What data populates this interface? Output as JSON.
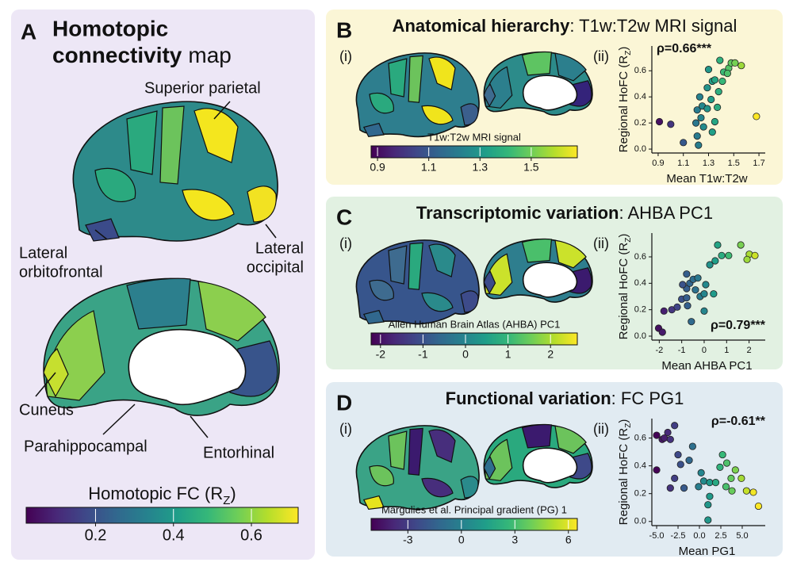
{
  "colormap": [
    "#440154",
    "#482878",
    "#3e4989",
    "#31688e",
    "#26828e",
    "#1f9e89",
    "#35b779",
    "#6ece58",
    "#b5de2b",
    "#fde725"
  ],
  "panel_a": {
    "letter": "A",
    "title_line1": "Homotopic",
    "title_bold": "connectivity",
    "title_rest": "map",
    "regions": [
      {
        "lines": [
          "Superior parietal"
        ],
        "color": "#b3312f"
      },
      {
        "lines": [
          "Lateral",
          "orbitofrontal"
        ],
        "color": "#3d4b97"
      },
      {
        "lines": [
          "Lateral",
          "occipital"
        ],
        "color": "#b3312f"
      },
      {
        "lines": [
          "Cuneus"
        ],
        "color": "#b3312f"
      },
      {
        "lines": [
          "Parahippocampal"
        ],
        "color": "#3d4b97"
      },
      {
        "lines": [
          "Entorhinal"
        ],
        "color": "#3d4b97"
      }
    ],
    "colorbar": {
      "label": {
        "text": "Homotopic FC (R",
        "sub": "Z",
        "end": ")"
      },
      "lim": [
        0.022,
        0.72
      ],
      "ticks": [
        0.2,
        0.4,
        0.6
      ]
    }
  },
  "panels": [
    {
      "letter": "B",
      "title_bold": "Anatomical hierarchy",
      "title_rest": ": T1w:T2w MRI signal",
      "sub_i": "(i)",
      "sub_ii": "(ii)",
      "colorbar": {
        "label": "T1w:T2w MRI signal",
        "lim": [
          0.875,
          1.68
        ],
        "ticks": [
          0.9,
          1.1,
          1.3,
          1.5
        ]
      }
    },
    {
      "letter": "C",
      "title_bold": "Transcriptomic variation",
      "title_rest": ": AHBA PC1",
      "sub_i": "(i)",
      "sub_ii": "(ii)",
      "colorbar": {
        "label": "Allen Human Brain Atlas (AHBA) PC1",
        "lim": [
          -2.22,
          2.63
        ],
        "ticks": [
          -2,
          -1,
          0,
          1,
          2
        ]
      }
    },
    {
      "letter": "D",
      "title_bold": "Functional variation",
      "title_rest": ": FC PG1",
      "sub_i": "(i)",
      "sub_ii": "(ii)",
      "colorbar": {
        "label": "Margulies et al. Principal gradient (PG) 1",
        "lim": [
          -5.06,
          6.5
        ],
        "ticks": [
          -3,
          0,
          3,
          6
        ]
      }
    }
  ],
  "chart_data": [
    {
      "type": "scatter",
      "x_label": "Mean T1w:T2w",
      "y_label": {
        "text": "Regional HoFC (R",
        "sub": "Z",
        "end": ")"
      },
      "annotation": "ρ=0.66***",
      "annotation_corner": "upper left",
      "xlim": [
        0.85,
        1.75
      ],
      "ylim": [
        -0.03,
        0.79
      ],
      "xticks": [
        0.9,
        1.1,
        1.3,
        1.5,
        1.7
      ],
      "yticks": [
        {
          "value": 0,
          "label": "0.0"
        },
        0.2,
        0.4,
        0.6
      ],
      "x": [
        0.91,
        1.0,
        1.1,
        1.22,
        1.21,
        1.2,
        1.24,
        1.26,
        1.21,
        1.25,
        1.29,
        1.32,
        1.37,
        1.23,
        1.29,
        1.33,
        1.35,
        1.3,
        1.39,
        1.42,
        1.46,
        1.48,
        1.51,
        1.56,
        1.45,
        1.41,
        1.38,
        1.35,
        1.33,
        1.68
      ],
      "values": [
        0.21,
        0.19,
        0.05,
        0.03,
        0.1,
        0.2,
        0.24,
        0.17,
        0.3,
        0.33,
        0.31,
        0.38,
        0.32,
        0.4,
        0.47,
        0.52,
        0.53,
        0.61,
        0.68,
        0.59,
        0.62,
        0.66,
        0.66,
        0.64,
        0.58,
        0.52,
        0.44,
        0.21,
        0.13,
        0.25
      ]
    },
    {
      "type": "scatter",
      "x_label": "Mean AHBA PC1",
      "y_label": {
        "text": "Regional HoFC (R",
        "sub": "Z",
        "end": ")"
      },
      "annotation": "ρ=0.79***",
      "annotation_corner": "lower right",
      "xlim": [
        -2.33,
        2.72
      ],
      "ylim": [
        -0.03,
        0.78
      ],
      "xticks": [
        -2,
        -1,
        0,
        1,
        2
      ],
      "yticks": [
        {
          "value": 0,
          "label": "0.0"
        },
        0.2,
        0.4,
        0.6
      ],
      "x": [
        -2.03,
        -1.86,
        -1.79,
        -1.44,
        -1.2,
        -1.0,
        -0.78,
        -0.74,
        -0.78,
        -0.64,
        -0.49,
        -0.28,
        -0.39,
        -0.18,
        0.0,
        0.0,
        -0.57,
        0.07,
        0.25,
        0.49,
        0.78,
        0.6,
        1.09,
        1.63,
        2.01,
        2.26,
        1.91,
        -0.78,
        -0.96,
        0.42
      ],
      "values": [
        0.06,
        0.03,
        0.19,
        0.2,
        0.22,
        0.28,
        0.29,
        0.23,
        0.36,
        0.4,
        0.43,
        0.44,
        0.35,
        0.3,
        0.32,
        0.19,
        0.11,
        0.39,
        0.54,
        0.57,
        0.61,
        0.69,
        0.61,
        0.69,
        0.62,
        0.61,
        0.58,
        0.47,
        0.39,
        0.32
      ]
    },
    {
      "type": "scatter",
      "x_label": "Mean PG1",
      "y_label": {
        "text": "Regional HoFC (R",
        "sub": "Z",
        "end": ")"
      },
      "annotation": "ρ=-0.61**",
      "annotation_corner": "upper right",
      "xlim": [
        -5.56,
        7.69
      ],
      "ylim": [
        -0.03,
        0.74
      ],
      "xticks": [
        {
          "value": -5,
          "label": "-5.0"
        },
        -2.5,
        {
          "value": 0,
          "label": "0.0"
        },
        2.5,
        {
          "value": 5,
          "label": "5.0"
        }
      ],
      "yticks": [
        {
          "value": 0,
          "label": "0.0"
        },
        0.2,
        0.4,
        0.6
      ],
      "x": [
        -5.0,
        -4.35,
        -3.7,
        -4.1,
        -3.4,
        -2.9,
        -2.5,
        -3.4,
        -2.9,
        -5.0,
        -2.2,
        -0.8,
        -1.2,
        0.2,
        -0.1,
        0.5,
        1.2,
        1.9,
        1.2,
        2.4,
        2.7,
        3.2,
        3.7,
        3.1,
        3.8,
        4.2,
        4.9,
        5.5,
        6.3,
        6.9,
        1.0,
        1.0,
        -1.8
      ],
      "values": [
        0.62,
        0.59,
        0.64,
        0.6,
        0.59,
        0.69,
        0.48,
        0.24,
        0.31,
        0.37,
        0.41,
        0.54,
        0.44,
        0.35,
        0.25,
        0.29,
        0.28,
        0.28,
        0.18,
        0.39,
        0.48,
        0.42,
        0.31,
        0.25,
        0.22,
        0.37,
        0.31,
        0.22,
        0.21,
        0.11,
        0.01,
        0.12,
        0.24
      ]
    }
  ]
}
